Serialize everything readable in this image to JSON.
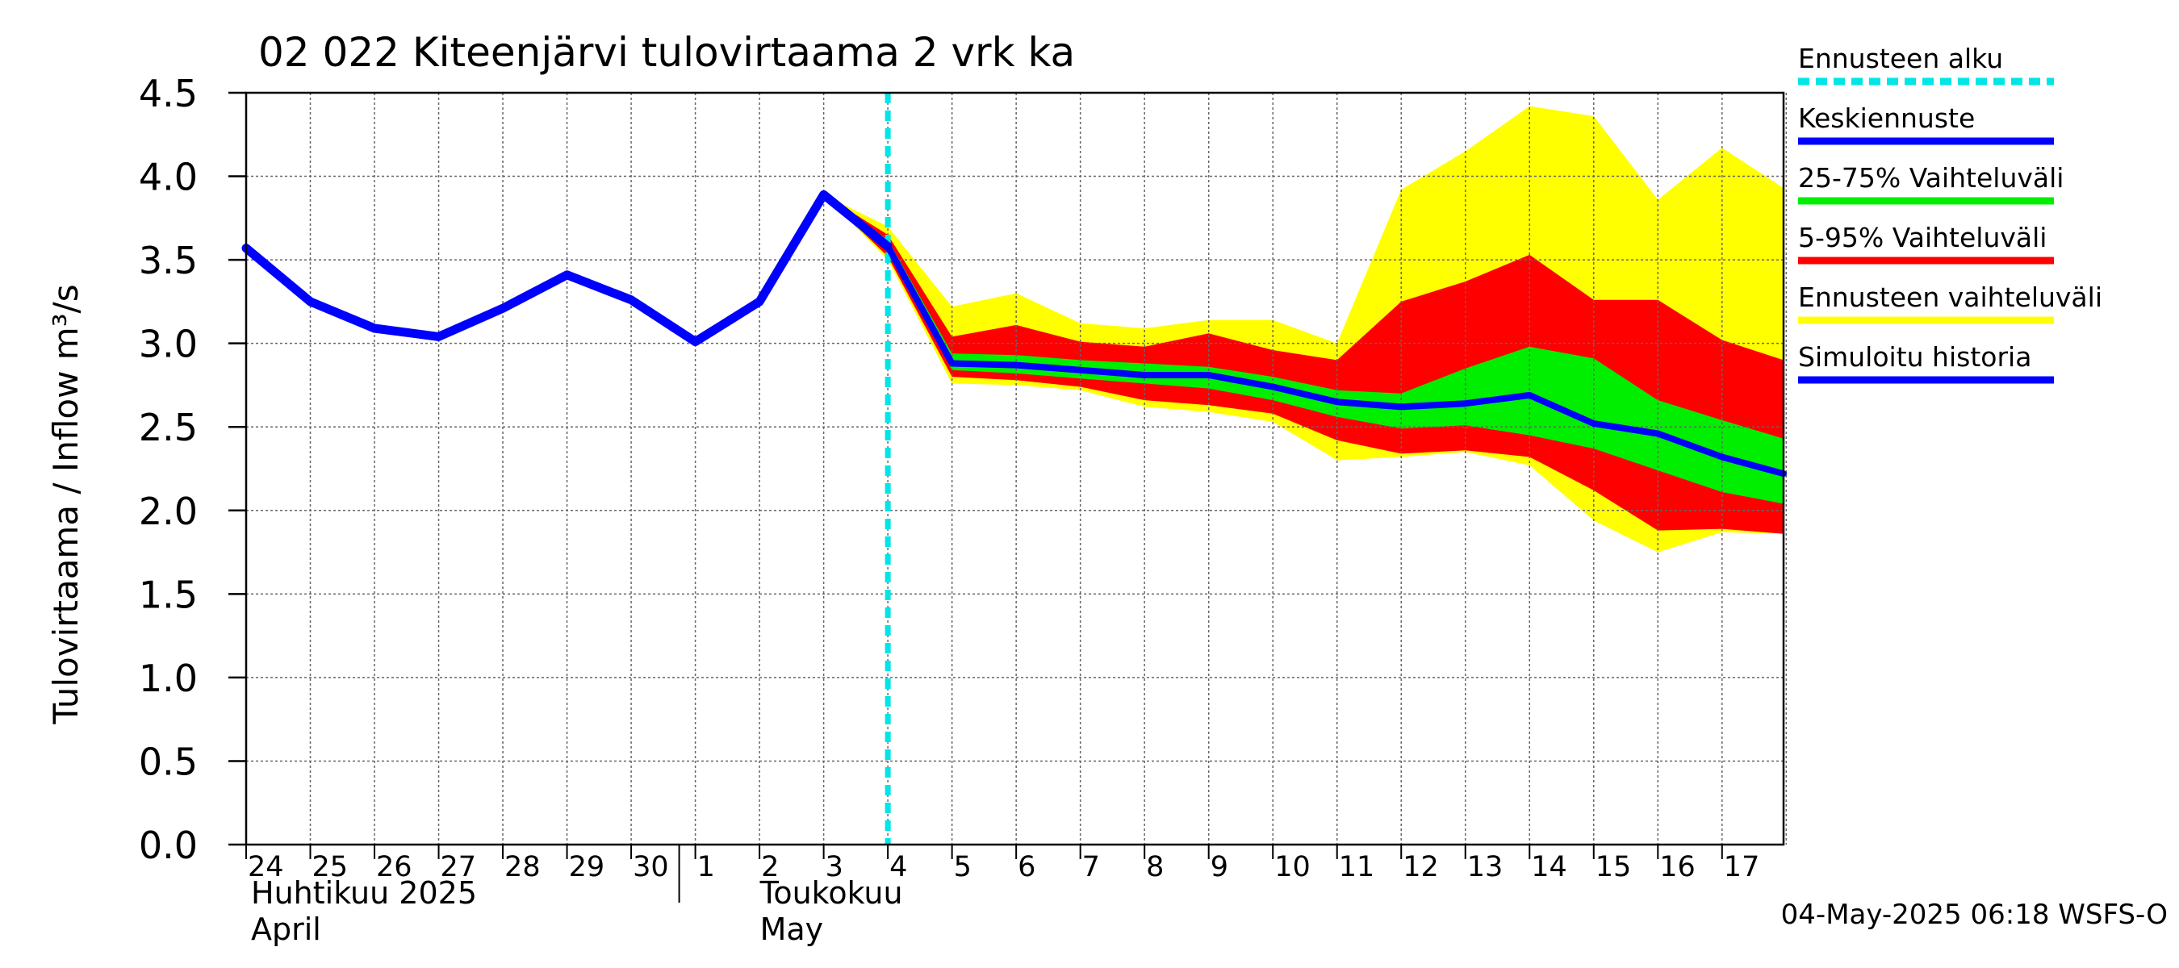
{
  "footer": "04-May-2025 06:18 WSFS-O",
  "chart_data": {
    "type": "area",
    "title": "02 022 Kiteenjärvi tulovirtaama 2 vrk ka",
    "ylabel": "Tulovirtaama / Inflow   m³/s",
    "ylim": [
      0,
      4.5
    ],
    "y_ticks": [
      "0.0",
      "0.5",
      "1.0",
      "1.5",
      "2.0",
      "2.5",
      "3.0",
      "3.5",
      "4.0",
      "4.5"
    ],
    "x_range": [
      "2025-04-24",
      "2025-05-17 23:00"
    ],
    "x_tick_labels": [
      "24",
      "25",
      "26",
      "27",
      "28",
      "29",
      "30",
      "1",
      "2",
      "3",
      "4",
      "5",
      "6",
      "7",
      "8",
      "9",
      "10",
      "11",
      "12",
      "13",
      "14",
      "15",
      "16",
      "17"
    ],
    "month_labels": [
      {
        "fi": "Huhtikuu  2025",
        "en": "April"
      },
      {
        "fi": "Toukokuu",
        "en": "May"
      }
    ],
    "forecast_start": "2025-05-04",
    "grid": true,
    "legend_position": "right",
    "legend": [
      {
        "label": "Ennusteen alku",
        "color": "#00e5e5",
        "style": "dashed"
      },
      {
        "label": "Keskiennuste",
        "color": "#0000ff",
        "style": "line"
      },
      {
        "label": "25-75% Vaihteluväli",
        "color": "#00ee00",
        "style": "line"
      },
      {
        "label": "5-95% Vaihteluväli",
        "color": "#ff0000",
        "style": "line"
      },
      {
        "label": "Ennusteen vaihteluväli",
        "color": "#ffff00",
        "style": "line"
      },
      {
        "label": "Simuloitu historia",
        "color": "#0000ff",
        "style": "line"
      }
    ],
    "history": {
      "x": [
        "2025-04-24",
        "2025-04-25",
        "2025-04-26",
        "2025-04-27",
        "2025-04-28",
        "2025-04-29",
        "2025-04-30",
        "2025-05-01",
        "2025-05-02",
        "2025-05-03",
        "2025-05-04"
      ],
      "y": [
        3.57,
        3.25,
        3.09,
        3.04,
        3.21,
        3.41,
        3.26,
        3.01,
        3.25,
        3.89,
        3.58
      ]
    },
    "forecast": {
      "x": [
        "2025-05-03",
        "2025-05-04",
        "2025-05-05",
        "2025-05-06",
        "2025-05-07",
        "2025-05-08",
        "2025-05-09",
        "2025-05-10",
        "2025-05-11",
        "2025-05-12",
        "2025-05-13",
        "2025-05-14",
        "2025-05-15",
        "2025-05-16",
        "2025-05-17",
        "2025-05-17 23:00"
      ],
      "max": [
        3.89,
        3.7,
        3.22,
        3.3,
        3.12,
        3.09,
        3.14,
        3.14,
        3.0,
        3.92,
        4.15,
        4.42,
        4.36,
        3.86,
        4.17,
        3.93
      ],
      "p95": [
        3.89,
        3.65,
        3.04,
        3.11,
        3.01,
        2.98,
        3.06,
        2.96,
        2.9,
        3.25,
        3.37,
        3.53,
        3.26,
        3.26,
        3.02,
        2.9
      ],
      "p75": [
        3.89,
        3.62,
        2.94,
        2.93,
        2.9,
        2.88,
        2.86,
        2.8,
        2.72,
        2.7,
        2.85,
        2.98,
        2.91,
        2.66,
        2.54,
        2.43
      ],
      "median": [
        3.89,
        3.58,
        2.88,
        2.87,
        2.84,
        2.81,
        2.81,
        2.74,
        2.65,
        2.62,
        2.64,
        2.69,
        2.52,
        2.46,
        2.32,
        2.22
      ],
      "p25": [
        3.89,
        3.55,
        2.84,
        2.82,
        2.79,
        2.76,
        2.73,
        2.66,
        2.56,
        2.49,
        2.51,
        2.45,
        2.37,
        2.24,
        2.11,
        2.04
      ],
      "p5": [
        3.89,
        3.52,
        2.8,
        2.78,
        2.74,
        2.66,
        2.63,
        2.58,
        2.42,
        2.34,
        2.36,
        2.32,
        2.12,
        1.88,
        1.89,
        1.86
      ],
      "min": [
        3.89,
        3.5,
        2.76,
        2.75,
        2.72,
        2.62,
        2.59,
        2.53,
        2.3,
        2.32,
        2.35,
        2.27,
        1.94,
        1.75,
        1.87,
        1.86
      ]
    }
  }
}
